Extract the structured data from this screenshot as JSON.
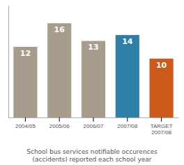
{
  "chart_data": {
    "type": "bar",
    "title": "School bus services notifiable occurences\n(accidents) reported each school year",
    "categories": [
      "2004/05",
      "2005/06",
      "2006/07",
      "2007/08",
      "TARGET\n2007/08"
    ],
    "values": [
      12,
      16,
      13,
      14,
      10
    ],
    "colors": [
      "#a89c8c",
      "#a89c8c",
      "#a89c8c",
      "#2e7fa8",
      "#c95a1a"
    ],
    "ylim": [
      0,
      19
    ],
    "data_labels": true,
    "tick_labels": "x",
    "grid": false
  }
}
